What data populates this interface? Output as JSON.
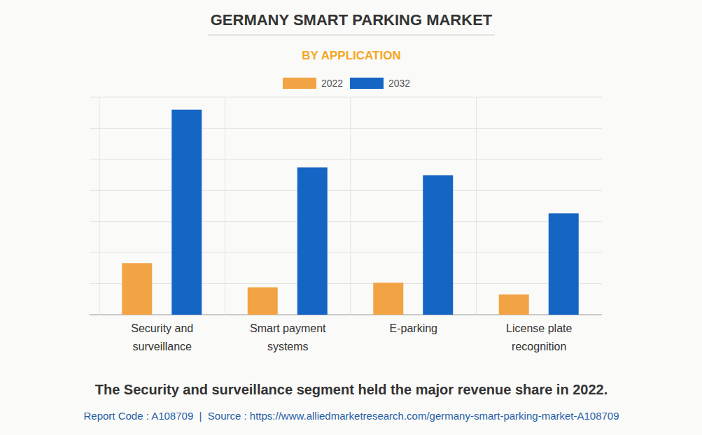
{
  "chart_data": {
    "type": "bar",
    "title": "GERMANY SMART PARKING MARKET",
    "subtitle": "BY APPLICATION",
    "categories": [
      "Security and surveillance",
      "Smart payment systems",
      "E-parking",
      "License plate recognition"
    ],
    "series": [
      {
        "name": "2022",
        "color": "#f2a444",
        "values": [
          1.66,
          0.88,
          1.03,
          0.65
        ]
      },
      {
        "name": "2032",
        "color": "#1565c4",
        "values": [
          6.6,
          4.74,
          4.49,
          3.26
        ]
      }
    ],
    "ylim": [
      0,
      7
    ],
    "yticks": [
      0,
      1,
      2,
      3,
      4,
      5,
      6,
      7
    ],
    "grid": true,
    "legend": "top",
    "tick_labels": "x",
    "annotations": [
      "The Security and surveillance segment held the major revenue share in 2022.",
      "Report Code : A108709  |  Source : https://www.alliedmarketresearch.com/germany-smart-parking-market-A108709"
    ]
  }
}
